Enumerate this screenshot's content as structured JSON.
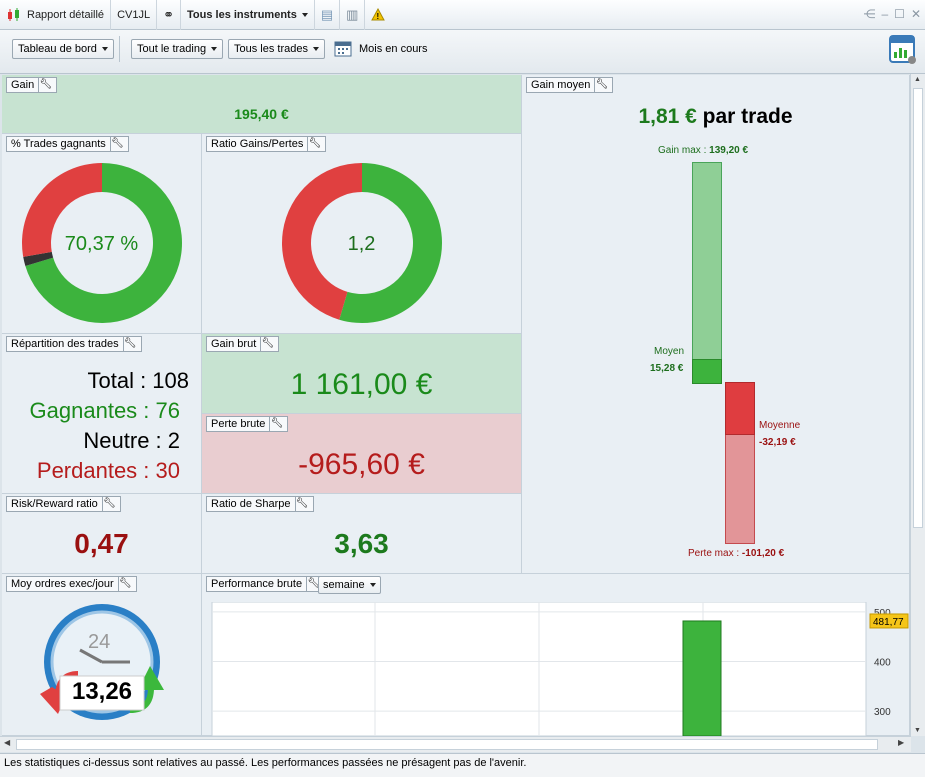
{
  "titlebar": {
    "report": "Rapport détaillé",
    "account": "CV1JL",
    "instruments": "Tous les instruments"
  },
  "toolbar": {
    "dashboard": "Tableau de bord",
    "trading": "Tout le trading",
    "trades": "Tous les trades",
    "period": "Mois en cours"
  },
  "gain": {
    "title": "Gain",
    "value": "195,40 €"
  },
  "pct_gagnants": {
    "title": "% Trades gagnants",
    "value": "70,37 %"
  },
  "ratio": {
    "title": "Ratio Gains/Pertes",
    "value": "1,2"
  },
  "repartition": {
    "title": "Répartition des trades",
    "total_label": "Total : 108",
    "gagnantes": "Gagnantes : 76",
    "neutre": "Neutre : 2",
    "perdantes": "Perdantes : 30"
  },
  "gain_brut": {
    "title": "Gain brut",
    "value": "1 161,00 €"
  },
  "perte_brute": {
    "title": "Perte brute",
    "value": "-965,60 €"
  },
  "risk_reward": {
    "title": "Risk/Reward ratio",
    "value": "0,47"
  },
  "sharpe": {
    "title": "Ratio de Sharpe",
    "value": "3,63"
  },
  "gain_moyen": {
    "title": "Gain moyen",
    "value": "1,81 €",
    "suffix": "par trade",
    "gain_max_label": "Gain max :",
    "gain_max": "139,20 €",
    "moyen_label": "Moyen",
    "moyen_value": "15,28 €",
    "moyenne_label": "Moyenne",
    "moyenne_value": "-32,19 €",
    "perte_max_label": "Perte max :",
    "perte_max": "-101,20 €"
  },
  "ordres": {
    "title": "Moy ordres exec/jour",
    "value": "13,26",
    "clock": "24"
  },
  "performance": {
    "title": "Performance brute",
    "period": "semaine",
    "last_value": "481,77",
    "ticks": [
      "500",
      "400",
      "300"
    ]
  },
  "status": "Les statistiques ci-dessus sont relatives au passé. Les performances passées ne présagent pas de l'avenir.",
  "chart_data": [
    {
      "type": "pie",
      "title": "% Trades gagnants",
      "labels": [
        "Gagnantes",
        "Neutre",
        "Perdantes"
      ],
      "values": [
        76,
        2,
        30
      ],
      "colors": [
        "#3db33d",
        "#333333",
        "#e04040"
      ]
    },
    {
      "type": "pie",
      "title": "Ratio Gains/Pertes",
      "labels": [
        "Gain brut",
        "Perte brute"
      ],
      "values": [
        1161.0,
        965.6
      ],
      "colors": [
        "#3db33d",
        "#e04040"
      ]
    },
    {
      "type": "bar",
      "title": "Performance brute",
      "categories": [
        "semaine"
      ],
      "values": [
        481.77
      ],
      "ylim": [
        250,
        520
      ]
    }
  ]
}
